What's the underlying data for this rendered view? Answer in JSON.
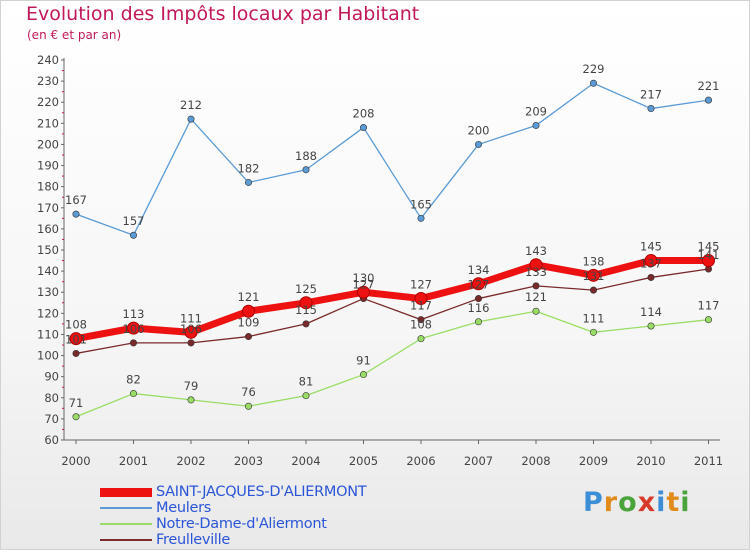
{
  "chart_data": {
    "type": "line",
    "title": "Evolution des Impôts locaux par Habitant",
    "subtitle": "(en € et par an)",
    "x": [
      "2000",
      "2001",
      "2002",
      "2003",
      "2004",
      "2005",
      "2006",
      "2007",
      "2008",
      "2009",
      "2010",
      "2011"
    ],
    "ylim": [
      60,
      240
    ],
    "yticks": [
      60,
      70,
      80,
      90,
      100,
      110,
      120,
      130,
      140,
      150,
      160,
      170,
      180,
      190,
      200,
      210,
      220,
      230,
      240
    ],
    "grid": false,
    "legend_position": "bottom-left",
    "series": [
      {
        "name": "SAINT-JACQUES-D'ALIERMONT",
        "color": "#ee1111",
        "values": [
          108,
          113,
          111,
          121,
          125,
          130,
          127,
          134,
          143,
          138,
          145,
          145
        ]
      },
      {
        "name": "Meulers",
        "color": "#5b9bd5",
        "values": [
          167,
          157,
          212,
          182,
          188,
          208,
          165,
          200,
          209,
          229,
          217,
          221
        ]
      },
      {
        "name": "Notre-Dame-d'Aliermont",
        "color": "#99dd66",
        "values": [
          71,
          82,
          79,
          76,
          81,
          91,
          108,
          116,
          121,
          111,
          114,
          117
        ]
      },
      {
        "name": "Freulleville",
        "color": "#7a2a2a",
        "values": [
          101,
          106,
          106,
          109,
          115,
          127,
          117,
          127,
          133,
          131,
          137,
          141
        ]
      }
    ]
  },
  "logo": {
    "text": "Proxiti",
    "letters": [
      "P",
      "r",
      "o",
      "x",
      "i",
      "t",
      "i"
    ]
  }
}
